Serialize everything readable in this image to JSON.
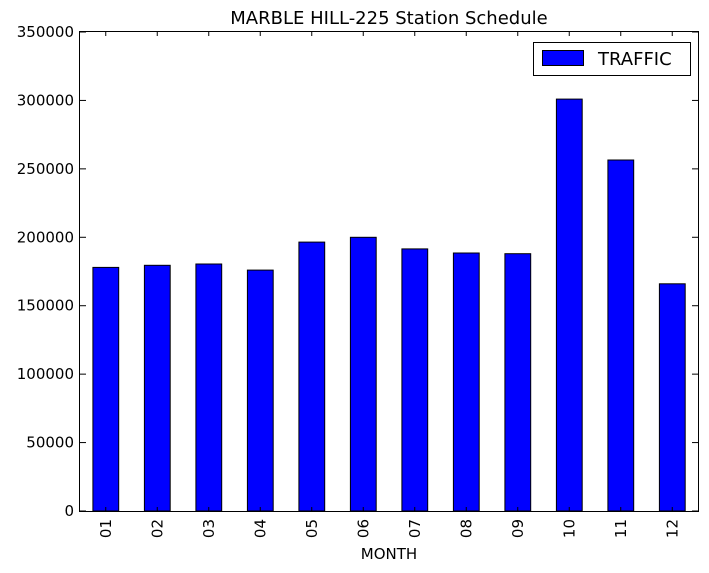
{
  "chart_data": {
    "type": "bar",
    "title": "MARBLE HILL-225 Station Schedule",
    "xlabel": "MONTH",
    "ylabel": "",
    "categories": [
      "01",
      "02",
      "03",
      "04",
      "05",
      "06",
      "07",
      "08",
      "09",
      "10",
      "11",
      "12"
    ],
    "series": [
      {
        "name": "TRAFFIC",
        "color": "#0000ff",
        "values": [
          178000,
          179500,
          180500,
          176000,
          196500,
          200000,
          191500,
          188500,
          188000,
          301000,
          256500,
          166000
        ]
      }
    ],
    "ylim": [
      0,
      350000
    ],
    "yticks": [
      "0",
      "50000",
      "100000",
      "150000",
      "200000",
      "250000",
      "300000",
      "350000"
    ],
    "grid": false,
    "legend_position": "top-right"
  }
}
